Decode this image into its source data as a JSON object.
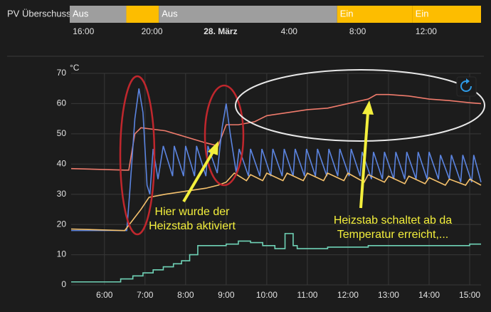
{
  "chart_data": [
    {
      "type": "timeline",
      "label": "PV Überschuss",
      "xlim": [
        15.2,
        39.2
      ],
      "xticks": [
        {
          "value": 16,
          "label": "16:00"
        },
        {
          "value": 20,
          "label": "20:00"
        },
        {
          "value": 24,
          "label": "28. März"
        },
        {
          "value": 28,
          "label": "4:00"
        },
        {
          "value": 32,
          "label": "8:00"
        },
        {
          "value": 36,
          "label": "12:00"
        }
      ],
      "segments": [
        {
          "state": "Aus",
          "start": 15.2,
          "end": 18.5,
          "color": "#9e9e9e"
        },
        {
          "state": null,
          "start": 18.5,
          "end": 20.4,
          "color": "#fdbd00"
        },
        {
          "state": "Aus",
          "start": 20.4,
          "end": 30.8,
          "color": "#9e9e9e"
        },
        {
          "state": "Ein",
          "start": 30.8,
          "end": 35.2,
          "color": "#fdbd00"
        },
        {
          "state": "Ein",
          "start": 35.2,
          "end": 39.2,
          "color": "#fdbd00"
        }
      ]
    },
    {
      "type": "line",
      "y_label": "°C",
      "xlim": [
        5.18,
        15.28
      ],
      "ylim": [
        0,
        70
      ],
      "xticks": [
        {
          "value": 6,
          "label": "6:00"
        },
        {
          "value": 7,
          "label": "7:00"
        },
        {
          "value": 8,
          "label": "8:00"
        },
        {
          "value": 9,
          "label": "9:00"
        },
        {
          "value": 10,
          "label": "10:00"
        },
        {
          "value": 11,
          "label": "11:00"
        },
        {
          "value": 12,
          "label": "12:00"
        },
        {
          "value": 13,
          "label": "13:00"
        },
        {
          "value": 14,
          "label": "14:00"
        },
        {
          "value": 15,
          "label": "15:00"
        }
      ],
      "yticks": [
        0,
        10,
        20,
        30,
        40,
        50,
        60,
        70
      ],
      "grid": true,
      "series": [
        {
          "color": "#ef7b6c",
          "x": [
            5.18,
            6.5,
            6.6,
            6.75,
            6.9,
            7.5,
            8.0,
            8.5,
            8.8,
            9.0,
            9.3,
            9.7,
            10.0,
            10.5,
            11.0,
            11.5,
            12.0,
            12.5,
            12.7,
            13.0,
            13.5,
            14.0,
            14.5,
            15.0,
            15.28
          ],
          "values": [
            38.5,
            38,
            38,
            50,
            52,
            51,
            49,
            47,
            46,
            53,
            53,
            54,
            56,
            57,
            58,
            58.5,
            60,
            61.5,
            63,
            63,
            62.5,
            61.5,
            61,
            60.3,
            60
          ]
        },
        {
          "color": "#5b84e0",
          "x": [
            5.18,
            6.55,
            6.62,
            6.75,
            6.85,
            6.95,
            7.05,
            7.12,
            7.2,
            7.32,
            7.45,
            7.68,
            7.72,
            7.95,
            8.0,
            8.22,
            8.27,
            8.5,
            8.55,
            8.78,
            8.85,
            8.9,
            9.0,
            9.1,
            9.25,
            9.32,
            9.55,
            9.6,
            9.83,
            9.88,
            10.1,
            10.15,
            10.38,
            10.43,
            10.65,
            10.7,
            10.93,
            10.98,
            11.2,
            11.25,
            11.48,
            11.53,
            11.75,
            11.8,
            12.03,
            12.08,
            12.3,
            12.35,
            12.58,
            12.63,
            12.85,
            12.9,
            13.13,
            13.18,
            13.4,
            13.45,
            13.68,
            13.73,
            13.95,
            14.0,
            14.23,
            14.28,
            14.5,
            14.55,
            14.78,
            14.83,
            15.05,
            15.1,
            15.28
          ],
          "values": [
            18,
            18,
            30,
            55,
            65,
            57,
            33,
            30,
            45,
            35,
            46,
            36,
            46,
            36,
            46,
            36,
            46,
            36,
            46,
            37,
            46,
            52,
            60,
            50,
            37,
            45,
            36,
            45,
            36,
            45,
            36,
            45,
            36,
            45,
            36,
            45,
            36,
            45,
            36,
            45,
            36,
            45,
            36,
            45,
            36,
            45,
            36,
            44,
            35,
            44,
            35,
            44,
            35,
            44,
            35,
            44,
            35,
            44,
            35,
            44,
            35,
            43,
            35,
            43,
            34,
            43,
            34,
            43,
            34
          ]
        },
        {
          "color": "#f6c26d",
          "x": [
            5.18,
            6.5,
            6.9,
            7.1,
            7.5,
            8.0,
            8.5,
            8.8,
            9.0,
            9.2,
            9.5,
            9.6,
            9.9,
            10.0,
            10.4,
            10.5,
            10.9,
            11.0,
            11.4,
            11.5,
            11.9,
            12.0,
            12.4,
            12.5,
            12.9,
            13.0,
            13.4,
            13.5,
            13.9,
            14.0,
            14.4,
            14.5,
            14.9,
            15.0,
            15.28
          ],
          "values": [
            18.5,
            18,
            25,
            29,
            30,
            31,
            32,
            33,
            34,
            37,
            34.5,
            36.5,
            34.5,
            37,
            34.5,
            37,
            34.5,
            37,
            34.5,
            37,
            34.5,
            37,
            34,
            36.5,
            34,
            36,
            33.5,
            36,
            33.5,
            35.5,
            33,
            35,
            33,
            35,
            33
          ]
        },
        {
          "color": "#6fd2b6",
          "step": true,
          "x": [
            5.18,
            6.4,
            6.7,
            6.95,
            7.2,
            7.45,
            7.7,
            7.9,
            8.1,
            8.3,
            8.6,
            9.0,
            9.3,
            9.6,
            9.9,
            10.2,
            10.45,
            10.65,
            10.75,
            11.5,
            12.5,
            14.0,
            15.0,
            15.28
          ],
          "values": [
            1,
            2,
            3,
            4,
            5,
            6,
            7,
            8,
            10,
            13,
            13,
            13.5,
            14.5,
            14,
            13,
            12,
            17,
            13,
            12,
            12.5,
            13,
            13,
            13.5,
            13.5
          ]
        }
      ],
      "annotations": [
        [
          "Hier wurde der",
          "Heizstab aktiviert"
        ],
        [
          "Heizstab schaltet ab da",
          "Temperatur  erreicht,..."
        ]
      ]
    }
  ]
}
